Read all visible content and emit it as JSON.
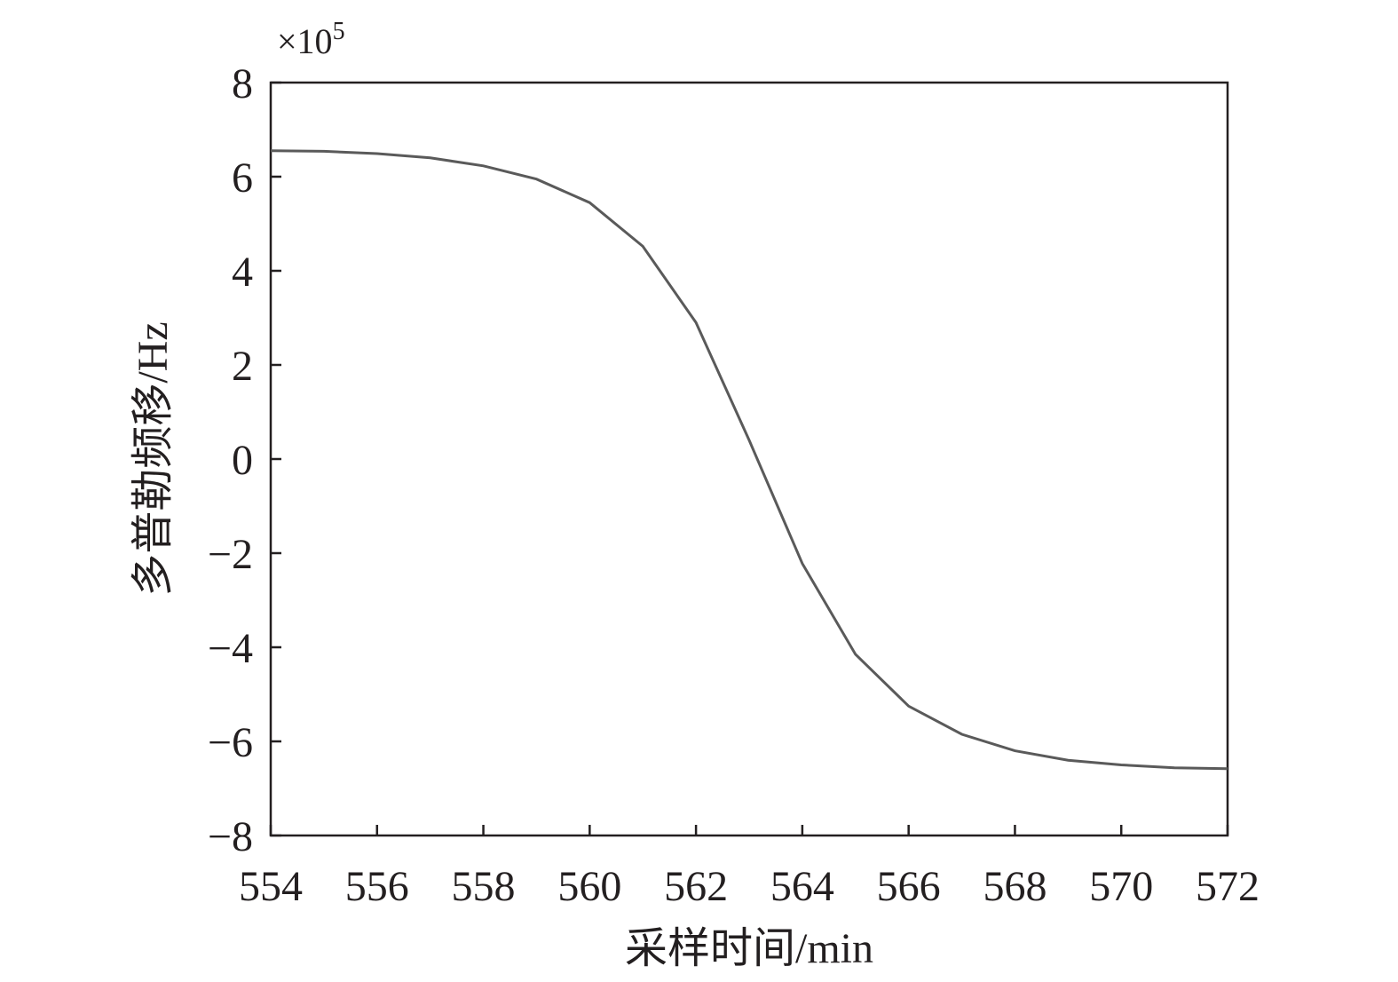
{
  "chart_data": {
    "type": "line",
    "title": "",
    "xlabel": "采样时间/min",
    "ylabel": "多普勒频移/Hz",
    "y_multiplier": {
      "base": "×10",
      "exponent": "5"
    },
    "xlim": [
      554,
      572
    ],
    "ylim": [
      -8,
      8
    ],
    "xticks": [
      554,
      556,
      558,
      560,
      562,
      564,
      566,
      568,
      570,
      572
    ],
    "yticks": [
      -8,
      -6,
      -4,
      -2,
      0,
      2,
      4,
      6,
      8
    ],
    "ytick_labels": [
      "−8",
      "−6",
      "−4",
      "−2",
      "0",
      "2",
      "4",
      "6",
      "8"
    ],
    "grid": false,
    "line_color": "#5a5a5a",
    "series": [
      {
        "x": [
          554,
          555,
          556,
          557,
          558,
          559,
          560,
          561,
          562,
          563,
          564,
          565,
          566,
          567,
          568,
          569,
          570,
          571,
          572
        ],
        "y": [
          6.55,
          6.54,
          6.49,
          6.4,
          6.23,
          5.95,
          5.45,
          4.52,
          2.9,
          0.4,
          -2.22,
          -4.15,
          -5.25,
          -5.85,
          -6.2,
          -6.4,
          -6.5,
          -6.56,
          -6.58
        ]
      }
    ]
  }
}
